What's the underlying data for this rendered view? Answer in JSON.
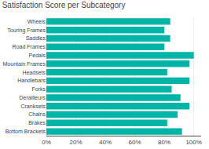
{
  "chart_data": {
    "type": "bar",
    "orientation": "horizontal",
    "title": "Satisfaction Score per Subcategory",
    "categories": [
      "Wheels",
      "Touring Frames",
      "Saddles",
      "Road Frames",
      "Pedals",
      "Mountain Frames",
      "Headsets",
      "Handlebars",
      "Forks",
      "Derailleurs",
      "Cranksets",
      "Chains",
      "Brakes",
      "Bottom Brackets"
    ],
    "values": [
      0.84,
      0.8,
      0.84,
      0.8,
      1.0,
      0.97,
      0.82,
      0.97,
      0.85,
      0.91,
      0.97,
      0.89,
      0.82,
      0.92
    ],
    "color": "#00b5a5",
    "xlim": [
      0,
      1.05
    ],
    "xticks": [
      {
        "value": 0.0,
        "label": "0%"
      },
      {
        "value": 0.2,
        "label": "20%"
      },
      {
        "value": 0.4,
        "label": "40%"
      },
      {
        "value": 0.6,
        "label": "60%"
      },
      {
        "value": 0.8,
        "label": "80%"
      },
      {
        "value": 1.0,
        "label": "100%"
      }
    ],
    "grid": true
  }
}
